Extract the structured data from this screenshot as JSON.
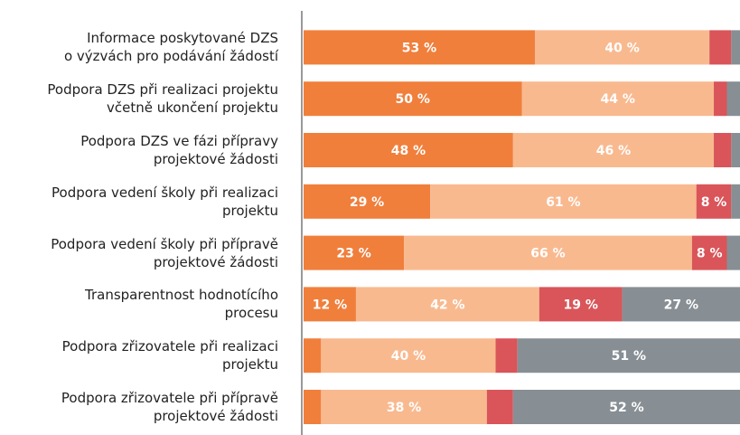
{
  "chart_data": {
    "type": "stacked-bar-horizontal",
    "categories": [
      "Informace poskytované DZS\no výzvách pro podávání žádostí",
      "Podpora DZS při realizaci projektu\nvčetně ukončení projektu",
      "Podpora DZS ve fázi přípravy\nprojektové žádosti",
      "Podpora vedení školy při realizaci\nprojektu",
      "Podpora vedení školy při přípravě\nprojektové žádosti",
      "Transparentnost hodnotícího\nprocesu",
      "Podpora zřizovatele při realizaci\nprojektu",
      "Podpora zřizovatele při přípravě\nprojektové žádosti"
    ],
    "xlim": [
      0,
      100
    ],
    "series": [
      {
        "color": "#f07f3c",
        "values": [
          53,
          50,
          48,
          29,
          23,
          12,
          4,
          4
        ],
        "value_labels": [
          "53 %",
          "50 %",
          "48 %",
          "29 %",
          "23 %",
          "12 %",
          null,
          null
        ]
      },
      {
        "color": "#f9b98f",
        "values": [
          40,
          44,
          46,
          61,
          66,
          42,
          40,
          38
        ],
        "value_labels": [
          "40 %",
          "44 %",
          "46 %",
          "61 %",
          "66 %",
          "42 %",
          "40 %",
          "38 %"
        ]
      },
      {
        "color": "#d95559",
        "values": [
          5,
          3,
          4,
          8,
          8,
          19,
          5,
          6
        ],
        "value_labels": [
          null,
          null,
          null,
          "8 %",
          "8 %",
          "19 %",
          null,
          null
        ]
      },
      {
        "color": "#878f95",
        "values": [
          2,
          3,
          2,
          2,
          3,
          27,
          51,
          52
        ],
        "value_labels": [
          null,
          null,
          null,
          null,
          null,
          "27 %",
          "51 %",
          "52 %"
        ]
      }
    ]
  }
}
